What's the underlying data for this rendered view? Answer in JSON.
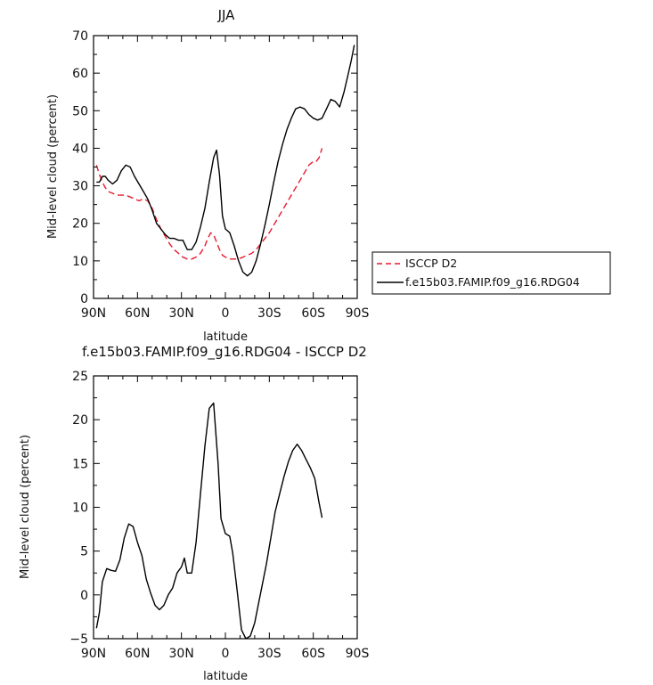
{
  "chart_data": [
    {
      "type": "line",
      "title": "JJA",
      "xlabel": "latitude",
      "ylabel": "Mid-level cloud (percent)",
      "xlim": [
        90,
        -90
      ],
      "ylim": [
        0,
        70
      ],
      "xtick_values": [
        90,
        60,
        30,
        0,
        -30,
        -60,
        -90
      ],
      "xtick_labels": [
        "90N",
        "60N",
        "30N",
        "0",
        "30S",
        "60S",
        "90S"
      ],
      "ytick_values": [
        0,
        10,
        20,
        30,
        40,
        50,
        60,
        70
      ],
      "ytick_labels": [
        "0",
        "10",
        "20",
        "30",
        "40",
        "50",
        "60",
        "70"
      ],
      "legend": "right, outside plot",
      "series": [
        {
          "name": "ISCCP D2",
          "color": "#e8192c",
          "dash": "dashed",
          "x": [
            88,
            86,
            84,
            82,
            80,
            77,
            74,
            71,
            68,
            65,
            62,
            59,
            56,
            53,
            50,
            47,
            44,
            41,
            38,
            35,
            32,
            29,
            26,
            23,
            20,
            17,
            14,
            12,
            10,
            8,
            6,
            4,
            2,
            0,
            -3,
            -6,
            -9,
            -12,
            -15,
            -18,
            -21,
            -24,
            -27,
            -30,
            -33,
            -36,
            -39,
            -42,
            -45,
            -48,
            -51,
            -54,
            -57,
            -60,
            -62,
            -64,
            -66
          ],
          "values": [
            35.5,
            33,
            31,
            29.5,
            28.5,
            28,
            27.5,
            27.5,
            27.5,
            27,
            26.5,
            26,
            26.5,
            26,
            24,
            21,
            18.5,
            16.5,
            14.5,
            13,
            12,
            11,
            10.5,
            10.5,
            11,
            12,
            14,
            16,
            17.5,
            17,
            15,
            13,
            11.5,
            11,
            10.5,
            10.5,
            10.5,
            11,
            11.5,
            12,
            13,
            14.5,
            16,
            17.5,
            19.5,
            21.5,
            23.5,
            25.5,
            27.5,
            29.5,
            31.5,
            33.5,
            35.5,
            36.5,
            36.5,
            37.5,
            40
          ]
        },
        {
          "name": "f.e15b03.FAMIP.f09_g16.RDG04",
          "color": "#000000",
          "dash": "solid",
          "x": [
            88,
            86,
            84,
            82,
            80,
            77,
            74,
            71,
            68,
            65,
            62,
            59,
            56,
            53,
            50,
            47,
            44,
            41,
            38,
            35,
            32,
            29,
            26,
            23,
            20,
            17,
            14,
            11,
            8,
            6,
            4,
            2,
            0,
            -3,
            -6,
            -9,
            -12,
            -15,
            -18,
            -21,
            -24,
            -27,
            -30,
            -33,
            -36,
            -39,
            -42,
            -45,
            -48,
            -51,
            -54,
            -57,
            -60,
            -63,
            -66,
            -69,
            -72,
            -75,
            -78,
            -81,
            -84,
            -86,
            -88
          ],
          "values": [
            31,
            31,
            32.5,
            32.5,
            31.5,
            30.5,
            31.5,
            34,
            35.5,
            35,
            32.5,
            30.5,
            28.5,
            26.5,
            23.5,
            20,
            18.5,
            17,
            16,
            16,
            15.5,
            15.5,
            13,
            13,
            15,
            19,
            24,
            31,
            37.5,
            39.5,
            33,
            22,
            18.5,
            17.5,
            14,
            10,
            7,
            6,
            7,
            10,
            14.5,
            19.5,
            25,
            31,
            36.5,
            41,
            45,
            48,
            50.5,
            51,
            50.5,
            49,
            48,
            47.5,
            48,
            50.5,
            53,
            52.5,
            51,
            55,
            60,
            63.5,
            67.5
          ]
        }
      ]
    },
    {
      "type": "line",
      "title": "f.e15b03.FAMIP.f09_g16.RDG04 - ISCCP D2",
      "xlabel": "latitude",
      "ylabel": "Mid-level cloud (percent)",
      "xlim": [
        90,
        -90
      ],
      "ylim": [
        -5,
        25
      ],
      "xtick_values": [
        90,
        60,
        30,
        0,
        -30,
        -60,
        -90
      ],
      "xtick_labels": [
        "90N",
        "60N",
        "30N",
        "0",
        "30S",
        "60S",
        "90S"
      ],
      "ytick_values": [
        -5,
        0,
        5,
        10,
        15,
        20,
        25
      ],
      "ytick_labels": [
        "−5",
        "0",
        "5",
        "10",
        "15",
        "20",
        "25"
      ],
      "series": [
        {
          "color": "#000000",
          "dash": "solid",
          "x": [
            88,
            86,
            84,
            81,
            78,
            75,
            72,
            69,
            66,
            63,
            60,
            57,
            54,
            51,
            48,
            45,
            42,
            39,
            36,
            33,
            30,
            28,
            26,
            23,
            20,
            17,
            14,
            11,
            8,
            5,
            3,
            0,
            -3,
            -5,
            -8,
            -11,
            -14,
            -17,
            -20,
            -22,
            -25,
            -28,
            -31,
            -34,
            -37,
            -40,
            -43,
            -46,
            -49,
            -52,
            -55,
            -58,
            -61,
            -64,
            -66
          ],
          "values": [
            -3.8,
            -2,
            1.5,
            3,
            2.8,
            2.7,
            4,
            6.5,
            8.1,
            7.8,
            6,
            4.5,
            1.8,
            0.2,
            -1.2,
            -1.7,
            -1.2,
            0,
            0.8,
            2.5,
            3.2,
            4.2,
            2.5,
            2.5,
            6,
            11.5,
            17,
            21.3,
            21.9,
            15,
            8.7,
            7,
            6.7,
            4.8,
            0.5,
            -4,
            -5,
            -4.7,
            -3.2,
            -1.5,
            1,
            3.5,
            6.5,
            9.5,
            11.5,
            13.5,
            15.2,
            16.5,
            17.2,
            16.5,
            15.5,
            14.5,
            13.3,
            10.5,
            8.8
          ]
        }
      ]
    }
  ]
}
